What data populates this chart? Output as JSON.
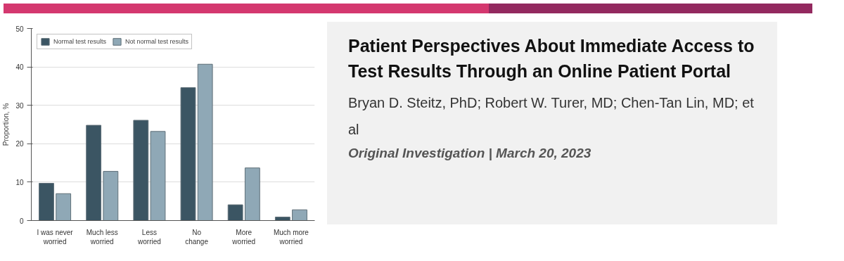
{
  "chart_data": [
    {
      "type": "bar",
      "ylabel": "Proportion, %",
      "categories": [
        "I was never\nworried",
        "Much less\nworried",
        "Less\nworried",
        "No\nchange",
        "More\nworried",
        "Much more\nworried"
      ],
      "series": [
        {
          "name": "Normal test results",
          "color": "#3b5563",
          "values": [
            9.7,
            24.8,
            26.1,
            34.6,
            4.1,
            0.9
          ]
        },
        {
          "name": "Not normal test results",
          "color": "#8fa8b6",
          "values": [
            7.0,
            12.8,
            23.2,
            40.7,
            13.7,
            2.8
          ]
        }
      ],
      "ylim": [
        0,
        50
      ],
      "yticks": [
        0,
        10,
        20,
        30,
        40,
        50
      ],
      "grid": "y",
      "legend": "top left"
    },
    {
      "type": "other",
      "title": "Patient Perspectives About Immediate Access to Test Results Through an Online Patient Portal",
      "annotations": [
        "Bryan D. Steitz, PhD; Robert W. Turer, MD; Chen-Tan Lin, MD; et al",
        "Original Investigation | March 20, 2023"
      ]
    }
  ]
}
